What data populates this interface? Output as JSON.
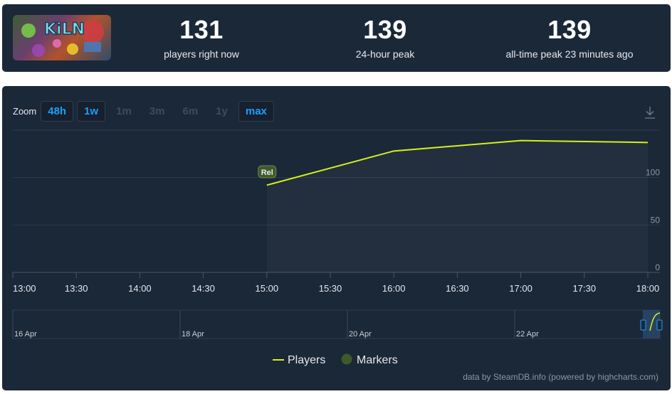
{
  "stats": [
    {
      "value": "131",
      "label": "players right now"
    },
    {
      "value": "139",
      "label": "24-hour peak"
    },
    {
      "value": "139",
      "label": "all-time peak 23 minutes ago"
    }
  ],
  "game": {
    "logo_text": "KiLN"
  },
  "zoom": {
    "label": "Zoom",
    "options": [
      {
        "label": "48h",
        "active": true
      },
      {
        "label": "1w",
        "active": true
      },
      {
        "label": "1m",
        "active": false
      },
      {
        "label": "3m",
        "active": false
      },
      {
        "label": "6m",
        "active": false
      },
      {
        "label": "1y",
        "active": false
      },
      {
        "label": "max",
        "active": true
      }
    ]
  },
  "download_icon": "download-icon",
  "chart_data": {
    "type": "line",
    "series": [
      {
        "name": "Players",
        "color": "#d4f11b",
        "x": [
          "15:00",
          "16:00",
          "17:00",
          "18:00"
        ],
        "values": [
          92,
          128,
          139,
          137
        ]
      }
    ],
    "x_ticks": [
      "13:00",
      "13:30",
      "14:00",
      "14:30",
      "15:00",
      "15:30",
      "16:00",
      "16:30",
      "17:00",
      "17:30",
      "18:00"
    ],
    "y_ticks": [
      "0",
      "50",
      "100"
    ],
    "ylim": [
      0,
      150
    ],
    "markers": [
      {
        "label": "Rel",
        "x": "15:00"
      }
    ],
    "legend": [
      {
        "label": "Players",
        "color": "#d4f11b"
      },
      {
        "label": "Markers",
        "color": "#3f5a2a"
      }
    ],
    "navigator_labels": [
      "16 Apr",
      "18 Apr",
      "20 Apr",
      "22 Apr"
    ],
    "grid": true,
    "legend_position": "bottom-center"
  },
  "credit": "data by SteamDB.info (powered by highcharts.com)"
}
